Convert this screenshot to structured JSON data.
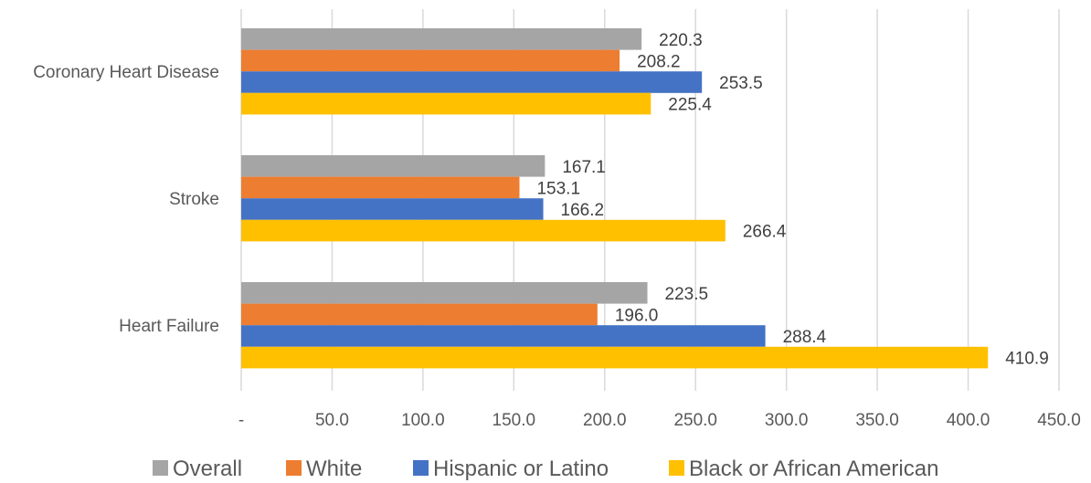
{
  "chart_data": {
    "type": "bar",
    "orientation": "horizontal",
    "categories": [
      "Coronary Heart Disease",
      "Stroke",
      "Heart Failure"
    ],
    "series": [
      {
        "name": "Overall",
        "color": "#a5a5a5",
        "values": [
          220.3,
          167.1,
          223.5
        ],
        "labels": [
          "220.3",
          "167.1",
          "223.5"
        ]
      },
      {
        "name": "White",
        "color": "#ed7d31",
        "values": [
          208.2,
          153.1,
          196.0
        ],
        "labels": [
          "208.2",
          "153.1",
          "196.0"
        ]
      },
      {
        "name": "Hispanic or Latino",
        "color": "#4472c4",
        "values": [
          253.5,
          166.2,
          288.4
        ],
        "labels": [
          "253.5",
          "166.2",
          "288.4"
        ]
      },
      {
        "name": "Black or African American",
        "color": "#ffc000",
        "values": [
          225.4,
          266.4,
          410.9
        ],
        "labels": [
          "225.4",
          "266.4",
          "410.9"
        ]
      }
    ],
    "xlim": [
      0,
      450
    ],
    "xticks": [
      0,
      50,
      100,
      150,
      200,
      250,
      300,
      350,
      400,
      450
    ],
    "xtick_labels": [
      "-",
      "50.0",
      "100.0",
      "150.0",
      "200.0",
      "250.0",
      "300.0",
      "350.0",
      "400.0",
      "450.0"
    ],
    "grid": true,
    "legend_position": "bottom",
    "title": "",
    "xlabel": "",
    "ylabel": ""
  }
}
